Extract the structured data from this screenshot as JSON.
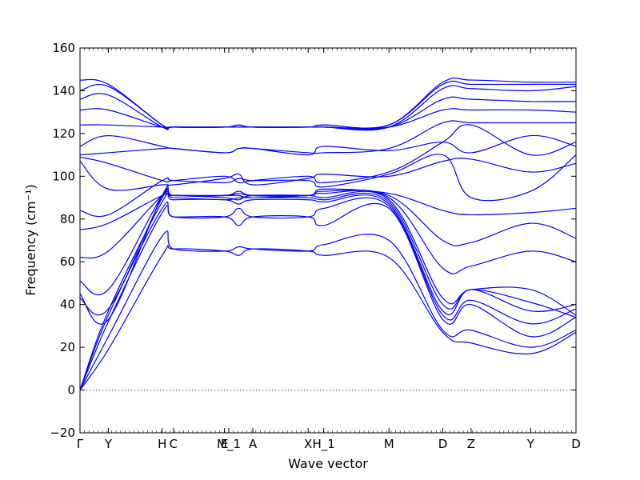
{
  "chart_data": {
    "type": "line",
    "title": "",
    "xlabel": "Wave vector",
    "ylabel": "Frequency (cm⁻¹)",
    "ylim": [
      -20,
      160
    ],
    "yticks": [
      -20,
      0,
      20,
      40,
      60,
      80,
      100,
      120,
      140,
      160
    ],
    "xlim": [
      0,
      17.5
    ],
    "xticks": [
      {
        "label": "Γ",
        "x": 0
      },
      {
        "label": "Y",
        "x": 1.0
      },
      {
        "label": "H",
        "x": 2.9
      },
      {
        "label": "C",
        "x": 3.3
      },
      {
        "label": "E",
        "x": 5.1
      },
      {
        "label": "M_1",
        "x": 5.25
      },
      {
        "label": "A",
        "x": 6.1
      },
      {
        "label": "X",
        "x": 8.05
      },
      {
        "label": "H_1",
        "x": 8.6
      },
      {
        "label": "M",
        "x": 10.9
      },
      {
        "label": "D",
        "x": 12.8
      },
      {
        "label": "Z",
        "x": 13.8
      },
      {
        "label": "Y",
        "x": 15.9
      },
      {
        "label": "D",
        "x": 17.5
      }
    ],
    "zero_line": true,
    "line_color": "#0000ff",
    "series": [
      {
        "x": [
          0,
          1.0,
          2.9,
          3.3,
          5.1,
          5.6,
          6.1,
          8.05,
          8.6,
          10.9,
          12.8,
          13.8,
          15.9,
          17.5
        ],
        "y": [
          0,
          19,
          63,
          66,
          65,
          63,
          66,
          65,
          63,
          62,
          27,
          22,
          17,
          27
        ]
      },
      {
        "x": [
          0,
          1.0,
          2.9,
          3.3,
          5.1,
          5.6,
          6.1,
          8.05,
          8.6,
          10.9,
          12.8,
          13.8,
          15.9,
          17.5
        ],
        "y": [
          0,
          25,
          72,
          66,
          65,
          67,
          66,
          65,
          68,
          70,
          28,
          28,
          20,
          28
        ]
      },
      {
        "x": [
          0,
          1.0,
          2.9,
          3.3,
          5.1,
          5.6,
          6.1,
          8.05,
          8.6,
          10.9,
          12.8,
          13.8,
          15.9,
          17.5
        ],
        "y": [
          0,
          32,
          83,
          81,
          81,
          77,
          81,
          81,
          77,
          85,
          33,
          40,
          25,
          34
        ]
      },
      {
        "x": [
          0,
          1.0,
          2.9,
          3.3,
          5.1,
          5.6,
          6.1,
          8.05,
          8.6,
          10.9,
          12.8,
          13.8,
          15.9,
          17.5
        ],
        "y": [
          0,
          35,
          85,
          81,
          81,
          85,
          81,
          81,
          85,
          86,
          35,
          42,
          31,
          38
        ]
      },
      {
        "x": [
          0,
          1.0,
          2.9,
          3.3,
          5.1,
          5.6,
          6.1,
          8.05,
          8.6,
          10.9,
          12.8,
          13.8,
          15.9,
          17.5
        ],
        "y": [
          0,
          37,
          88,
          89,
          89,
          87,
          89,
          89,
          88,
          87,
          37,
          47,
          37,
          40
        ]
      },
      {
        "x": [
          0,
          1.0,
          2.9,
          3.3,
          5.1,
          5.6,
          6.1,
          8.05,
          8.6,
          10.9,
          12.8,
          13.8,
          15.9,
          17.5
        ],
        "y": [
          43,
          38,
          90,
          90,
          89,
          90,
          90,
          90,
          89,
          88,
          40,
          47,
          41,
          34
        ]
      },
      {
        "x": [
          0,
          1.0,
          2.9,
          3.3,
          5.1,
          5.6,
          6.1,
          8.05,
          8.6,
          10.9,
          12.8,
          13.8,
          15.9,
          17.5
        ],
        "y": [
          45,
          33,
          91,
          91,
          90,
          89,
          91,
          91,
          90,
          89,
          43,
          47,
          47,
          35
        ]
      },
      {
        "x": [
          0,
          1.0,
          2.9,
          3.3,
          5.1,
          5.6,
          6.1,
          8.05,
          8.6,
          10.9,
          12.8,
          13.8,
          15.9,
          17.5
        ],
        "y": [
          51,
          47,
          91,
          91,
          91,
          91,
          90,
          91,
          92,
          90,
          57,
          58,
          65,
          60
        ]
      },
      {
        "x": [
          0,
          1.0,
          2.9,
          3.3,
          5.1,
          5.6,
          6.1,
          8.05,
          8.6,
          10.9,
          12.8,
          13.8,
          15.9,
          17.5
        ],
        "y": [
          62,
          65,
          91,
          91,
          91,
          92,
          91,
          91,
          93,
          91,
          70,
          69,
          78,
          71
        ]
      },
      {
        "x": [
          0,
          1.0,
          2.9,
          3.3,
          5.1,
          5.6,
          6.1,
          8.05,
          8.6,
          10.9,
          12.8,
          13.8,
          15.9,
          17.5
        ],
        "y": [
          75,
          78,
          91,
          91,
          91,
          93,
          91,
          91,
          94,
          92,
          84,
          82,
          83,
          85
        ]
      },
      {
        "x": [
          0,
          1.0,
          2.9,
          3.3,
          5.1,
          5.6,
          6.1,
          8.05,
          8.6,
          10.9,
          12.8,
          13.8,
          15.9,
          17.5
        ],
        "y": [
          84,
          82,
          98,
          98,
          97,
          99,
          98,
          98,
          95,
          101,
          110,
          90,
          93,
          110
        ]
      },
      {
        "x": [
          0,
          1.0,
          2.9,
          3.3,
          5.1,
          5.6,
          6.1,
          8.05,
          8.6,
          10.9,
          12.8,
          13.8,
          15.9,
          17.5
        ],
        "y": [
          107,
          94,
          96,
          96,
          99,
          101,
          96,
          99,
          101,
          100,
          107,
          108,
          102,
          106
        ]
      },
      {
        "x": [
          0,
          1.0,
          2.9,
          3.3,
          5.1,
          5.6,
          6.1,
          8.05,
          8.6,
          10.9,
          12.8,
          13.8,
          15.9,
          17.5
        ],
        "y": [
          109,
          106,
          98,
          98,
          100,
          97,
          98,
          100,
          97,
          102,
          116,
          124,
          110,
          116
        ]
      },
      {
        "x": [
          0,
          1.0,
          2.9,
          3.3,
          5.1,
          5.6,
          6.1,
          8.05,
          8.6,
          10.9,
          12.8,
          13.8,
          15.9,
          17.5
        ],
        "y": [
          110,
          111,
          113,
          113,
          111,
          113,
          113,
          110,
          114,
          112,
          116,
          111,
          119,
          114
        ]
      },
      {
        "x": [
          0,
          1.0,
          2.9,
          3.3,
          5.1,
          5.6,
          6.1,
          8.05,
          8.6,
          10.9,
          12.8,
          13.8,
          15.9,
          17.5
        ],
        "y": [
          114,
          119,
          114,
          113,
          111,
          113,
          113,
          111,
          111,
          113,
          125,
          125,
          125,
          125
        ]
      },
      {
        "x": [
          0,
          1.0,
          2.9,
          3.3,
          5.1,
          5.6,
          6.1,
          8.05,
          8.6,
          10.9,
          12.8,
          13.8,
          15.9,
          17.5
        ],
        "y": [
          124,
          124,
          123,
          123,
          123,
          124,
          123,
          123,
          123,
          123,
          131,
          131,
          131,
          130
        ]
      },
      {
        "x": [
          0,
          1.0,
          2.9,
          3.3,
          5.1,
          5.6,
          6.1,
          8.05,
          8.6,
          10.9,
          12.8,
          13.8,
          15.9,
          17.5
        ],
        "y": [
          131,
          131,
          123,
          123,
          123,
          123,
          123,
          123,
          123,
          123,
          136,
          136,
          135,
          135
        ]
      },
      {
        "x": [
          0,
          1.0,
          2.9,
          3.3,
          5.1,
          5.6,
          6.1,
          8.05,
          8.6,
          10.9,
          12.8,
          13.8,
          15.9,
          17.5
        ],
        "y": [
          136,
          138,
          123,
          123,
          123,
          123,
          123,
          123,
          123,
          123,
          141,
          141,
          140,
          142
        ]
      },
      {
        "x": [
          0,
          1.0,
          2.9,
          3.3,
          5.1,
          5.6,
          6.1,
          8.05,
          8.6,
          10.9,
          12.8,
          13.8,
          15.9,
          17.5
        ],
        "y": [
          140,
          142,
          124,
          123,
          123,
          124,
          123,
          123,
          124,
          124,
          143,
          143,
          143,
          143
        ]
      },
      {
        "x": [
          0,
          1.0,
          2.9,
          3.3,
          5.1,
          5.6,
          6.1,
          8.05,
          8.6,
          10.9,
          12.8,
          13.8,
          15.9,
          17.5
        ],
        "y": [
          145,
          143,
          124,
          123,
          123,
          124,
          123,
          123,
          124,
          124,
          144,
          145,
          144,
          144
        ]
      }
    ]
  }
}
